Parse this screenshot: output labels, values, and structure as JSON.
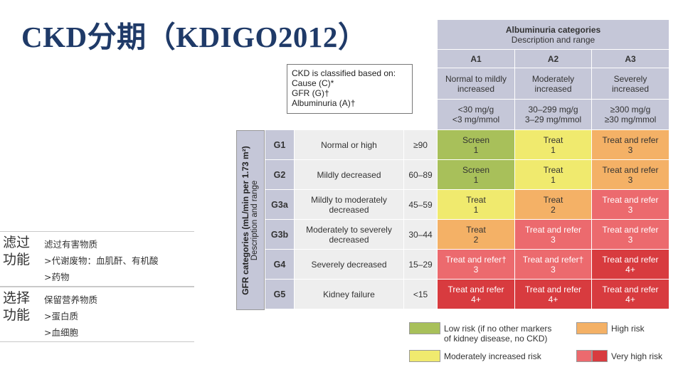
{
  "title": "CKD分期（KDIGO2012）",
  "notes": [
    {
      "header": "滤过功能",
      "lines": [
        "滤过有害物质",
        ">代谢废物：血肌酐、有机酸",
        ">药物"
      ]
    },
    {
      "header": "选择功能",
      "lines": [
        "保留营养物质",
        ">蛋白质",
        ">血细胞"
      ]
    }
  ],
  "classification": {
    "lines": [
      "CKD is classified based on:",
      "Cause (C)*",
      "GFR (G)†",
      "Albuminuria (A)†"
    ]
  },
  "albuminuria": {
    "title": "Albuminuria categories",
    "subtitle": "Description and range",
    "columns": [
      {
        "code": "A1",
        "desc": "Normal to mildly increased",
        "range": "<30 mg/g\n<3 mg/mmol"
      },
      {
        "code": "A2",
        "desc": "Moderately increased",
        "range": "30–299 mg/g\n3–29 mg/mmol"
      },
      {
        "code": "A3",
        "desc": "Severely increased",
        "range": "≥300 mg/g\n≥30 mg/mmol"
      }
    ]
  },
  "gfr_axis": {
    "title": "GFR categories (mL/min per 1.73 m²)",
    "subtitle": "Description and range"
  },
  "rows": [
    {
      "code": "G1",
      "desc": "Normal or high",
      "range": "≥90",
      "cells": [
        {
          "label": "Screen",
          "num": "1",
          "risk": "low"
        },
        {
          "label": "Treat",
          "num": "1",
          "risk": "mod"
        },
        {
          "label": "Treat and refer",
          "num": "3",
          "risk": "high"
        }
      ]
    },
    {
      "code": "G2",
      "desc": "Mildly decreased",
      "range": "60–89",
      "cells": [
        {
          "label": "Screen",
          "num": "1",
          "risk": "low"
        },
        {
          "label": "Treat",
          "num": "1",
          "risk": "mod"
        },
        {
          "label": "Treat and refer",
          "num": "3",
          "risk": "high"
        }
      ]
    },
    {
      "code": "G3a",
      "desc": "Mildly to moderately decreased",
      "range": "45–59",
      "cells": [
        {
          "label": "Treat",
          "num": "1",
          "risk": "mod"
        },
        {
          "label": "Treat",
          "num": "2",
          "risk": "high"
        },
        {
          "label": "Treat and refer",
          "num": "3",
          "risk": "vhigh"
        }
      ]
    },
    {
      "code": "G3b",
      "desc": "Moderately to severely decreased",
      "range": "30–44",
      "cells": [
        {
          "label": "Treat",
          "num": "2",
          "risk": "high"
        },
        {
          "label": "Treat and refer",
          "num": "3",
          "risk": "vhigh"
        },
        {
          "label": "Treat and refer",
          "num": "3",
          "risk": "vhigh"
        }
      ]
    },
    {
      "code": "G4",
      "desc": "Severely decreased",
      "range": "15–29",
      "cells": [
        {
          "label": "Treat and refer†",
          "num": "3",
          "risk": "vhigh"
        },
        {
          "label": "Treat and refer†",
          "num": "3",
          "risk": "vhigh"
        },
        {
          "label": "Treat and refer",
          "num": "4+",
          "risk": "vhigh2"
        }
      ]
    },
    {
      "code": "G5",
      "desc": "Kidney failure",
      "range": "<15",
      "cells": [
        {
          "label": "Treat and refer",
          "num": "4+",
          "risk": "vhigh2"
        },
        {
          "label": "Treat and refer",
          "num": "4+",
          "risk": "vhigh2"
        },
        {
          "label": "Treat and refer",
          "num": "4+",
          "risk": "vhigh2"
        }
      ]
    }
  ],
  "legend": [
    {
      "label": "Low risk (if no other markers\nof kidney disease, no CKD)",
      "color": "#a8c05a"
    },
    {
      "label": "High risk",
      "color": "#f4b166"
    },
    {
      "label": "Moderately increased risk",
      "color": "#f0ea6e"
    },
    {
      "label": "Very high risk",
      "color": "#ec6a6e",
      "color2": "#d83b3f"
    }
  ]
}
